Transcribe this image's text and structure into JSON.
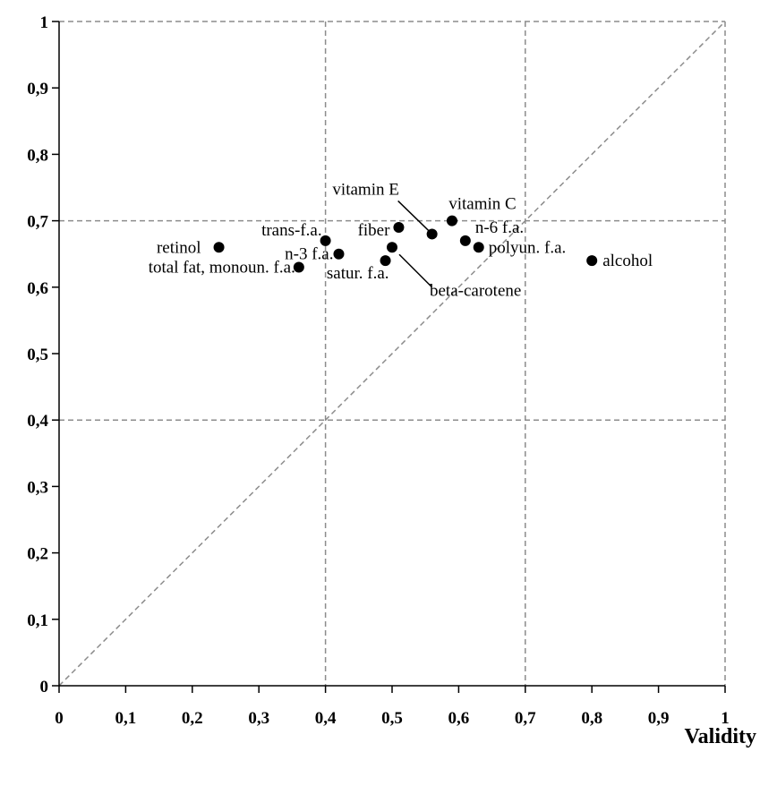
{
  "chart_data": {
    "type": "scatter",
    "title": "",
    "xlabel": "Validity",
    "ylabel": "",
    "xlim": [
      0,
      1
    ],
    "ylim": [
      0,
      1
    ],
    "x_ticks": [
      "0",
      "0,1",
      "0,2",
      "0,3",
      "0,4",
      "0,5",
      "0,6",
      "0,7",
      "0,8",
      "0,9",
      "1"
    ],
    "y_ticks": [
      "0",
      "0,1",
      "0,2",
      "0,3",
      "0,4",
      "0,5",
      "0,6",
      "0,7",
      "0,8",
      "0,9",
      "1"
    ],
    "grid_x": [
      0.4,
      0.7,
      1
    ],
    "grid_y": [
      0.4,
      0.7,
      1
    ],
    "diagonal": true,
    "points": [
      {
        "label": "retinol",
        "x": 0.24,
        "y": 0.66
      },
      {
        "label": "total fat, monoun. f.a.",
        "x": 0.36,
        "y": 0.63
      },
      {
        "label": "trans-f.a.",
        "x": 0.4,
        "y": 0.67
      },
      {
        "label": "n-3 f.a.",
        "x": 0.42,
        "y": 0.65
      },
      {
        "label": "satur. f.a.",
        "x": 0.49,
        "y": 0.64
      },
      {
        "label": "beta-carotene",
        "x": 0.5,
        "y": 0.66
      },
      {
        "label": "fiber",
        "x": 0.51,
        "y": 0.69
      },
      {
        "label": "vitamin E",
        "x": 0.56,
        "y": 0.68
      },
      {
        "label": "vitamin C",
        "x": 0.59,
        "y": 0.7
      },
      {
        "label": "n-6 f.a.",
        "x": 0.61,
        "y": 0.67
      },
      {
        "label": "polyun. f.a.",
        "x": 0.63,
        "y": 0.66
      },
      {
        "label": "alcohol",
        "x": 0.8,
        "y": 0.64
      }
    ]
  }
}
